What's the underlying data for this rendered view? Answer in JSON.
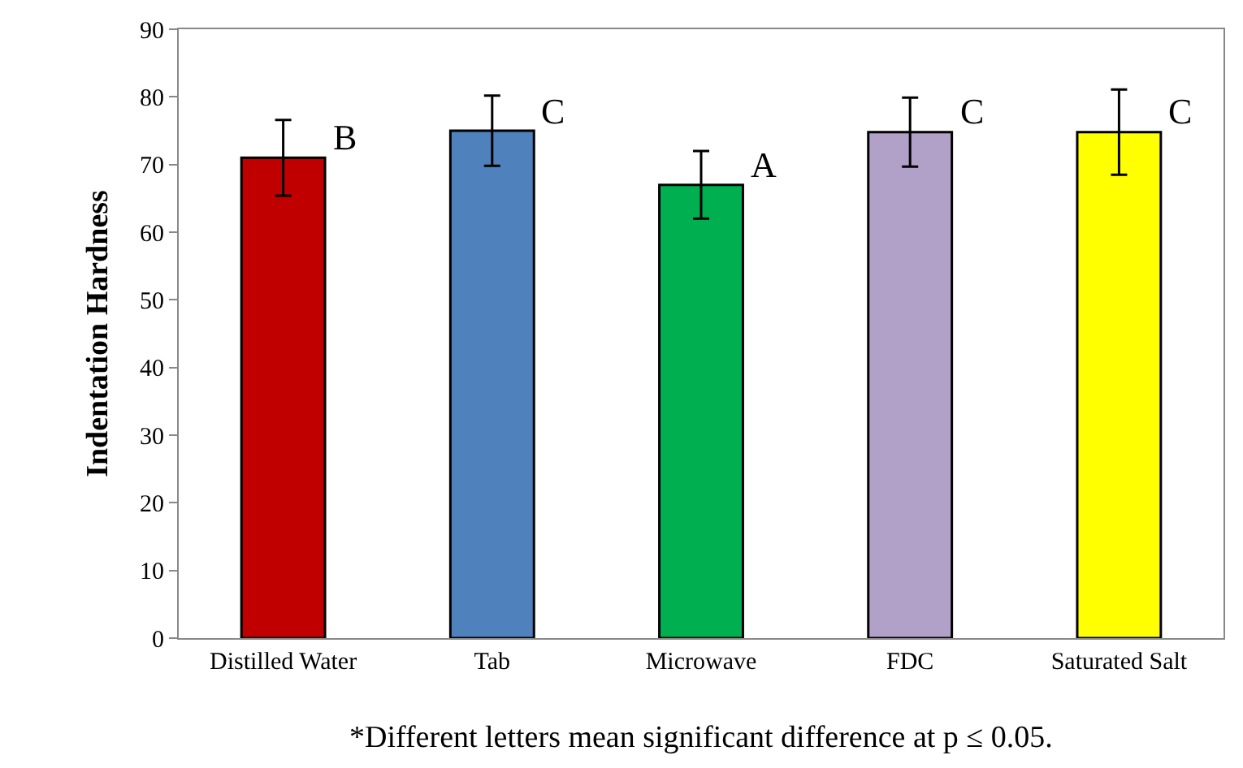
{
  "chart_data": {
    "type": "bar",
    "ylabel": "Indentation Hardness",
    "categories": [
      "Distilled Water",
      "Tab",
      "Microwave",
      "FDC",
      "Saturated Salt"
    ],
    "values": [
      71,
      75,
      67,
      74.8,
      74.8
    ],
    "errors": [
      5.6,
      5.2,
      5,
      5.1,
      6.3
    ],
    "colors": [
      "#c00000",
      "#4f81bd",
      "#00b050",
      "#b1a0c7",
      "#ffff00"
    ],
    "ylim": [
      0,
      90
    ],
    "yticks": [
      0,
      10,
      20,
      30,
      40,
      50,
      60,
      70,
      80,
      90
    ],
    "grid": false,
    "annotations": [
      {
        "text": "B",
        "x": "Distilled Water",
        "y": 74
      },
      {
        "text": "C",
        "x": "Tab",
        "y": 78
      },
      {
        "text": "A",
        "x": "Microwave",
        "y": 70
      },
      {
        "text": "C",
        "x": "FDC",
        "y": 78
      },
      {
        "text": "C",
        "x": "Saturated Salt",
        "y": 78
      },
      "*Different letters mean significant difference at p ≤ 0.05."
    ]
  }
}
